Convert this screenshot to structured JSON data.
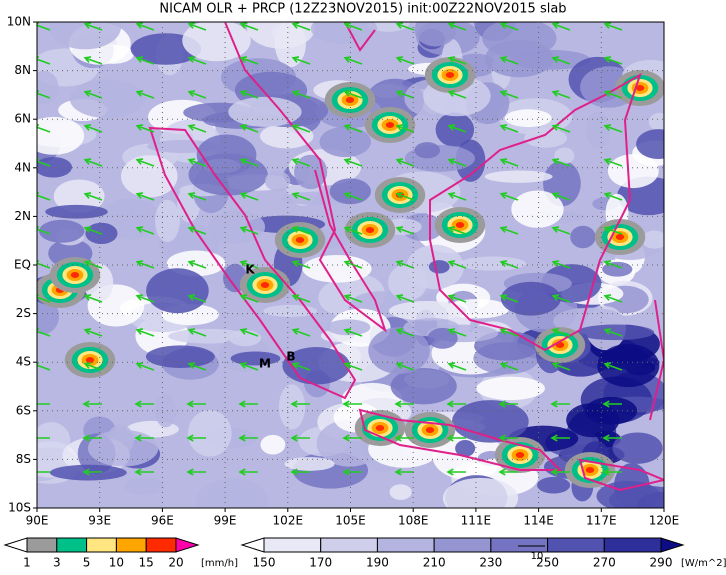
{
  "map": {
    "title": "NICAM OLR + PRCP (12Z23NOV2015) init:00Z22NOV2015 slab",
    "x_labels": [
      "90E",
      "93E",
      "96E",
      "99E",
      "102E",
      "105E",
      "108E",
      "111E",
      "114E",
      "117E",
      "120E"
    ],
    "y_labels": [
      "10N",
      "8N",
      "6N",
      "4N",
      "2N",
      "EQ",
      "2S",
      "4S",
      "6S",
      "8S",
      "10S"
    ],
    "places": [
      "K",
      "M",
      "B"
    ],
    "vector_reference": "10"
  },
  "precip_legend": {
    "labels": [
      "1",
      "3",
      "5",
      "10",
      "15",
      "20"
    ],
    "unit": "[mm/h]",
    "colors": [
      "#ffffff",
      "#9b9b9b",
      "#00c08a",
      "#ffe680",
      "#ffa500",
      "#ff2a00",
      "#ff00aa"
    ]
  },
  "olr_legend": {
    "labels": [
      "150",
      "170",
      "190",
      "210",
      "230",
      "250",
      "270",
      "290"
    ],
    "unit": "[W/m^2]",
    "colors": [
      "#ffffff",
      "#e8e8f6",
      "#cfcfec",
      "#b4b4e0",
      "#9595d2",
      "#7474c2",
      "#5252b0",
      "#2f2f9c",
      "#0c0c84"
    ]
  }
}
